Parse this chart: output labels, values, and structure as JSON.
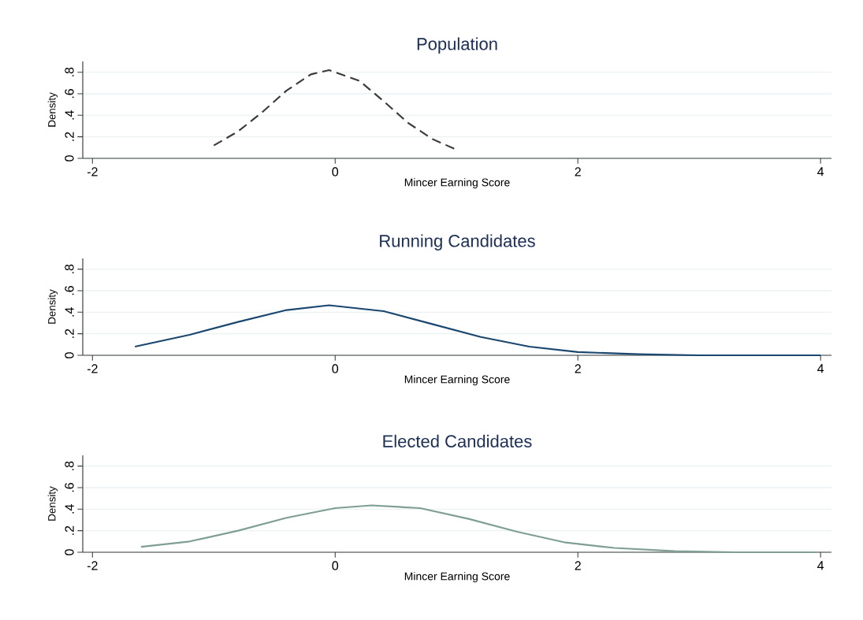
{
  "chart_data": [
    {
      "type": "line",
      "title": "Population",
      "xlabel": "Mincer Earning Score",
      "ylabel": "Density",
      "x": [
        -1.0,
        -0.8,
        -0.6,
        -0.4,
        -0.2,
        -0.05,
        0.2,
        0.4,
        0.6,
        0.8,
        1.0
      ],
      "series": [
        {
          "color": "#3a3a3a",
          "values": [
            0.12,
            0.25,
            0.43,
            0.63,
            0.78,
            0.82,
            0.72,
            0.53,
            0.33,
            0.18,
            0.08
          ]
        }
      ],
      "line_style": "dashed",
      "grid": "y",
      "xlim": [
        -2.08,
        4.09
      ],
      "ylim": [
        0,
        0.9
      ],
      "xticks": [
        -2,
        0,
        2,
        4
      ],
      "yticks": [
        0,
        {
          "value": 0.2,
          "label": ".2"
        },
        {
          "value": 0.4,
          "label": ".4"
        },
        {
          "value": 0.6,
          "label": ".6"
        },
        {
          "value": 0.8,
          "label": ".8"
        }
      ]
    },
    {
      "type": "line",
      "title": "Running Candidates",
      "xlabel": "Mincer Earning Score",
      "ylabel": "Density",
      "x": [
        -1.65,
        -1.2,
        -0.8,
        -0.4,
        -0.05,
        0.4,
        0.8,
        1.2,
        1.6,
        2.0,
        2.5,
        3.0,
        4.0
      ],
      "series": [
        {
          "color": "#1a476f",
          "values": [
            0.08,
            0.19,
            0.31,
            0.42,
            0.465,
            0.41,
            0.29,
            0.17,
            0.08,
            0.03,
            0.01,
            0.0,
            0.0
          ]
        }
      ],
      "line_style": "solid",
      "grid": "y",
      "xlim": [
        -2.08,
        4.09
      ],
      "ylim": [
        0,
        0.9
      ],
      "xticks": [
        -2,
        0,
        2,
        4
      ],
      "yticks": [
        0,
        {
          "value": 0.2,
          "label": ".2"
        },
        {
          "value": 0.4,
          "label": ".4"
        },
        {
          "value": 0.6,
          "label": ".6"
        },
        {
          "value": 0.8,
          "label": ".8"
        }
      ]
    },
    {
      "type": "line",
      "title": "Elected Candidates",
      "xlabel": "Mincer Earning Score",
      "ylabel": "Density",
      "x": [
        -1.6,
        -1.2,
        -0.8,
        -0.4,
        0.0,
        0.3,
        0.7,
        1.1,
        1.5,
        1.9,
        2.3,
        2.8,
        3.3,
        3.95
      ],
      "series": [
        {
          "color": "#7f9f92",
          "values": [
            0.05,
            0.1,
            0.2,
            0.32,
            0.41,
            0.435,
            0.41,
            0.31,
            0.19,
            0.09,
            0.04,
            0.01,
            0.0,
            0.0
          ]
        }
      ],
      "line_style": "solid",
      "grid": "y",
      "xlim": [
        -2.08,
        4.09
      ],
      "ylim": [
        0,
        0.9
      ],
      "xticks": [
        -2,
        0,
        2,
        4
      ],
      "yticks": [
        0,
        {
          "value": 0.2,
          "label": ".2"
        },
        {
          "value": 0.4,
          "label": ".4"
        },
        {
          "value": 0.6,
          "label": ".6"
        },
        {
          "value": 0.8,
          "label": ".8"
        }
      ]
    }
  ]
}
